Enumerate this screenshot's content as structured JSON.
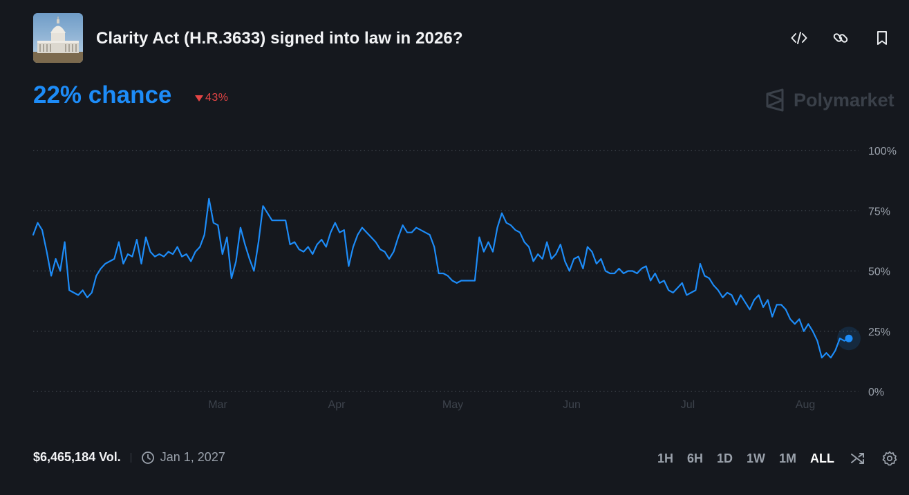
{
  "header": {
    "title": "Clarity Act (H.R.3633) signed into law in 2026?"
  },
  "summary": {
    "chance": "22% chance",
    "change": "43%",
    "change_direction": "down"
  },
  "brand": {
    "name": "Polymarket"
  },
  "footer": {
    "volume": "$6,465,184 Vol.",
    "end_date": "Jan 1, 2027",
    "ranges": [
      "1H",
      "6H",
      "1D",
      "1W",
      "1M",
      "ALL"
    ],
    "active_range": "ALL"
  },
  "colors": {
    "accent": "#1d8cf8",
    "negative": "#e54545",
    "background": "#15181e",
    "grid": "#3a3f47",
    "axis_text": "#9aa1ab"
  },
  "icons": [
    "embed-icon",
    "link-icon",
    "bookmark-icon",
    "clock-icon",
    "shuffle-icon",
    "settings-icon",
    "polymarket-logo-icon"
  ],
  "chart_data": {
    "type": "line",
    "x_tick_labels": [
      "Mar",
      "Apr",
      "May",
      "Jun",
      "Jul",
      "Aug"
    ],
    "y_tick_labels": [
      "100%",
      "75%",
      "50%",
      "25%",
      "0%"
    ],
    "ylim": [
      0,
      100
    ],
    "grid": true,
    "series": [
      {
        "values": [
          65,
          70,
          67,
          58,
          48,
          55,
          50,
          62,
          42,
          41,
          40,
          42,
          39,
          41,
          48,
          51,
          53,
          54,
          55,
          62,
          53,
          57,
          56,
          63,
          53,
          64,
          58,
          56,
          57,
          56,
          58,
          57,
          60,
          56,
          57,
          54,
          58,
          60,
          65,
          80,
          70,
          69,
          57,
          64,
          47,
          54,
          68,
          61,
          55,
          50,
          62,
          77,
          74,
          71,
          71,
          71,
          71,
          61,
          62,
          59,
          58,
          60,
          57,
          61,
          63,
          60,
          66,
          70,
          66,
          67,
          52,
          60,
          65,
          68,
          66,
          64,
          62,
          59,
          58,
          55,
          58,
          64,
          69,
          66,
          66,
          68,
          67,
          66,
          65,
          60,
          49,
          49,
          48,
          46,
          45,
          46,
          46,
          46,
          46,
          64,
          58,
          62,
          58,
          68,
          74,
          70,
          69,
          67,
          66,
          62,
          60,
          54,
          57,
          55,
          62,
          55,
          57,
          61,
          54,
          50,
          55,
          56,
          51,
          60,
          58,
          53,
          55,
          50,
          49,
          49,
          51,
          49,
          50,
          50,
          49,
          51,
          52,
          46,
          49,
          45,
          46,
          42,
          41,
          43,
          45,
          40,
          41,
          42,
          53,
          48,
          47,
          44,
          42,
          39,
          41,
          40,
          36,
          40,
          37,
          34,
          38,
          40,
          35,
          38,
          31,
          36,
          36,
          34,
          30,
          28,
          30,
          25,
          28,
          25,
          21,
          14,
          16,
          14,
          17,
          22,
          21,
          22
        ]
      }
    ],
    "last_value": 22
  }
}
